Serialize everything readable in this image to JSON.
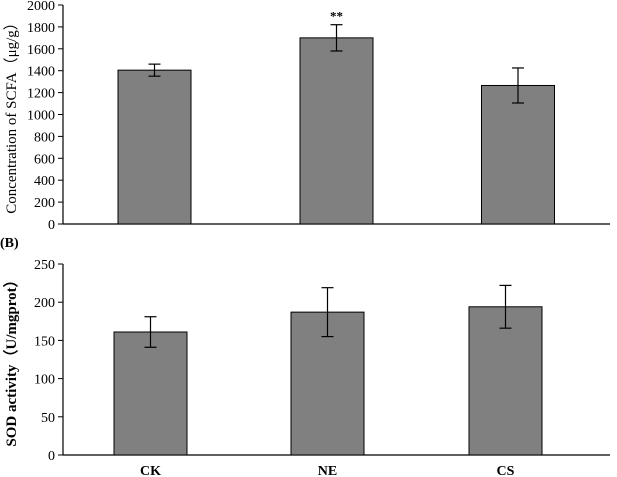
{
  "chart_data": [
    {
      "panel_label": "",
      "type": "bar",
      "categories": [
        "CK",
        "NE",
        "CS"
      ],
      "values": [
        1405,
        1700,
        1265
      ],
      "errors": [
        55,
        120,
        160
      ],
      "annotations": [
        "",
        "**",
        ""
      ],
      "title": "",
      "xlabel": "",
      "ylabel": "Concentration of SCFA（μg/g）",
      "ylim": [
        0,
        2000
      ],
      "yticks": [
        0,
        200,
        400,
        600,
        800,
        1000,
        1200,
        1400,
        1600,
        1800,
        2000
      ],
      "bar_color": "#808080",
      "grid": false,
      "show_category_labels": false
    },
    {
      "panel_label": "(B)",
      "type": "bar",
      "categories": [
        "CK",
        "NE",
        "CS"
      ],
      "values": [
        161,
        187,
        194
      ],
      "errors": [
        20,
        32,
        28
      ],
      "annotations": [
        "",
        "",
        ""
      ],
      "title": "",
      "xlabel": "",
      "ylabel": "SOD activity（U/mgprot）",
      "ylim": [
        0,
        250
      ],
      "yticks": [
        0,
        50,
        100,
        150,
        200,
        250
      ],
      "bar_color": "#808080",
      "grid": false,
      "show_category_labels": true
    }
  ]
}
